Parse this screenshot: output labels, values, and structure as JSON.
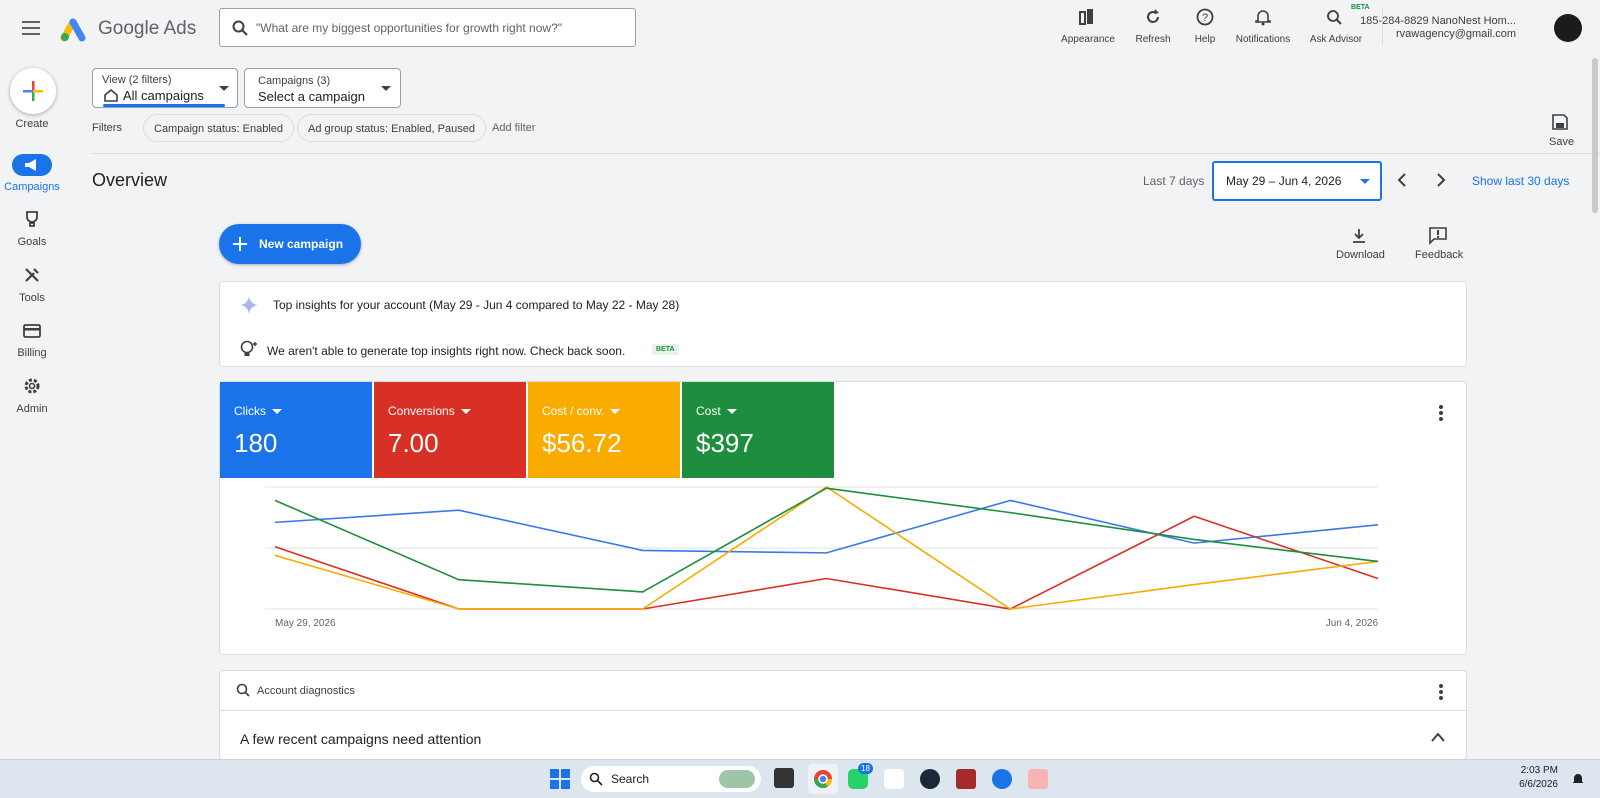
{
  "header": {
    "logo": "Google Ads",
    "search_placeholder": "\"What are my biggest opportunities for growth right now?\"",
    "actions": [
      "Appearance",
      "Refresh",
      "Help",
      "Notifications",
      "Ask Advisor"
    ],
    "advisor_badge": "BETA",
    "account": "185-284-8829 NanoNest Hom...",
    "email": "rvawagency@gmail.com"
  },
  "sidebar": {
    "create": "Create",
    "items": [
      "Campaigns",
      "Goals",
      "Tools",
      "Billing",
      "Admin"
    ]
  },
  "filters": {
    "view_label": "View (2 filters)",
    "view_value": "All campaigns",
    "campaigns_label": "Campaigns (3)",
    "campaigns_value": "Select a campaign",
    "filters_label": "Filters",
    "chips": [
      "Campaign status: Enabled",
      "Ad group status: Enabled, Paused"
    ],
    "add_filter": "Add filter",
    "save": "Save"
  },
  "overview": {
    "title": "Overview",
    "range_label": "Last 7 days",
    "range_value": "May 29 – Jun 4, 2026",
    "show_30": "Show last 30 days",
    "new_campaign": "New campaign",
    "download": "Download",
    "feedback": "Feedback"
  },
  "insights": {
    "title": "Top insights for your account (May 29 - Jun 4 compared to May 22 - May 28)",
    "message": "We aren't able to generate top insights right now. Check back soon.",
    "badge": "BETA"
  },
  "scorecards": [
    {
      "label": "Clicks",
      "value": "180",
      "color": "#1a73e8"
    },
    {
      "label": "Conversions",
      "value": "7.00",
      "color": "#d93025"
    },
    {
      "label": "Cost / conv.",
      "value": "$56.72",
      "color": "#f9ab00"
    },
    {
      "label": "Cost",
      "value": "$397",
      "color": "#1e8e3e"
    }
  ],
  "chart_data": {
    "type": "line",
    "categories": [
      "May 29, 2026",
      null,
      null,
      null,
      null,
      null,
      "Jun 4, 2026"
    ],
    "ylim": [
      0,
      100
    ],
    "yticks": [
      0,
      50,
      100
    ],
    "grid": true,
    "series": [
      {
        "color": "#3b78e7",
        "values": [
          71,
          81,
          48,
          46,
          89,
          54,
          69
        ]
      },
      {
        "color": "#d93025",
        "values": [
          51,
          0,
          0,
          25,
          0,
          76,
          25
        ]
      },
      {
        "color": "#f9ab00",
        "values": [
          44,
          0,
          0,
          100,
          0,
          20,
          39
        ]
      },
      {
        "color": "#1e8e3e",
        "values": [
          89,
          24,
          14,
          99,
          79,
          57,
          39
        ]
      }
    ]
  },
  "diagnostics": {
    "title": "Account diagnostics",
    "heading": "A few recent campaigns need attention"
  },
  "taskbar": {
    "search": "Search",
    "badge": "18",
    "time": "2:03 PM",
    "date": "6/6/2026"
  }
}
